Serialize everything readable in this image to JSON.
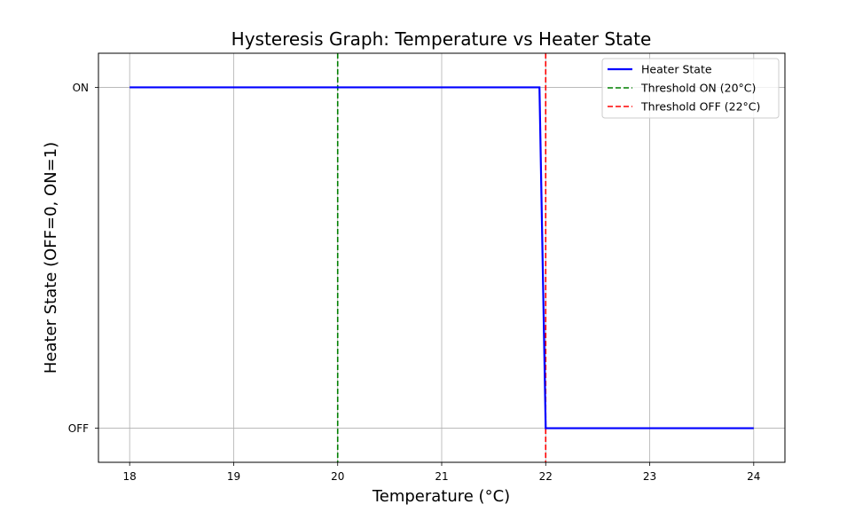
{
  "chart_data": {
    "type": "line",
    "title": "Hysteresis Graph: Temperature vs Heater State",
    "xlabel": "Temperature (°C)",
    "ylabel": "Heater State (OFF=0, ON=1)",
    "xlim": [
      17.7,
      24.3
    ],
    "ylim": [
      -0.1,
      1.1
    ],
    "x_ticks": [
      18,
      19,
      20,
      21,
      22,
      23,
      24
    ],
    "x_tick_labels": [
      "18",
      "19",
      "20",
      "21",
      "22",
      "23",
      "24"
    ],
    "y_ticks": [
      0,
      1
    ],
    "y_tick_labels": [
      "OFF",
      "ON"
    ],
    "grid": true,
    "legend_position": "top-right",
    "series": [
      {
        "name": "Heater State",
        "color": "#0000ff",
        "style": "solid",
        "x": [
          18,
          21.94,
          22.0,
          24
        ],
        "y": [
          1,
          1,
          0,
          0
        ]
      }
    ],
    "reference_lines": [
      {
        "name": "Threshold ON (20°C)",
        "x": 20,
        "color": "#008000",
        "style": "dashed"
      },
      {
        "name": "Threshold OFF (22°C)",
        "x": 22,
        "color": "#ff0000",
        "style": "dashed"
      }
    ]
  }
}
